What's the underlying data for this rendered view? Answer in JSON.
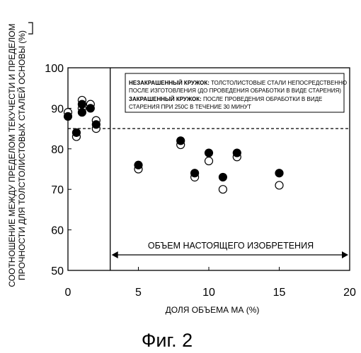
{
  "chart_data": {
    "type": "scatter",
    "xlabel": "ДОЛЯ ОБЪЕМА МА (%)",
    "ylabel_line1": "СООТНОШЕНИЕ МЕЖДУ ПРЕДЕЛОМ ТЕКУЧЕСТИ И ПРЕДЕЛОМ",
    "ylabel_line2": "ПРОЧНОСТИ ДЛЯ ТОЛСТОЛИСТОВЫХ СТАЛЕЙ ОСНОВЫ (%)",
    "xlim": [
      0,
      20
    ],
    "ylim": [
      50,
      100
    ],
    "x_ticks": [
      "0",
      "5",
      "10",
      "15",
      "20"
    ],
    "y_ticks": [
      "50",
      "60",
      "70",
      "80",
      "90",
      "100"
    ],
    "x_tick_values": [
      0,
      5,
      10,
      15,
      20
    ],
    "y_tick_values": [
      50,
      60,
      70,
      80,
      90,
      100
    ],
    "grid": false,
    "reference_line_y": 85,
    "invention_boundary_x": 3,
    "invention_range": [
      3,
      20
    ],
    "invention_label": "ОБЪЕМ НАСТОЯЩЕГО ИЗОБРЕТЕНИЯ",
    "legend": [
      {
        "key": "НЕЗАКРАШЕННЫЙ КРУЖОК:",
        "text": [
          " ТОЛСТОЛИСТОВЫЕ СТАЛИ НЕПОСРЕДСТВЕННО",
          "ПОСЛЕ ИЗГОТОВЛЕНИЯ (ДО ПРОВЕДЕНИЯ ОБРАБОТКИ В ВИДЕ СТАРЕНИЯ)"
        ]
      },
      {
        "key": "ЗАКРАШЕННЫЙ КРУЖОК:",
        "text": [
          " ПОСЛЕ ПРОВЕДЕНИЯ ОБРАБОТКИ В ВИДЕ",
          "СТАРЕНИЯ ПРИ 250С В ТЕЧЕНИЕ 30 МИНУТ"
        ]
      }
    ],
    "series": [
      {
        "marker": "open-circle",
        "points": [
          [
            0,
            89
          ],
          [
            0.6,
            83
          ],
          [
            1.0,
            92
          ],
          [
            1.0,
            90
          ],
          [
            1.6,
            91
          ],
          [
            2.0,
            85
          ],
          [
            2.0,
            87
          ],
          [
            5,
            75
          ],
          [
            8,
            81
          ],
          [
            9,
            73
          ],
          [
            10,
            77
          ],
          [
            11,
            70
          ],
          [
            12,
            78
          ],
          [
            15,
            71
          ]
        ]
      },
      {
        "marker": "filled-circle",
        "points": [
          [
            0,
            88
          ],
          [
            0.6,
            84
          ],
          [
            1.0,
            89
          ],
          [
            1.0,
            91
          ],
          [
            1.6,
            90
          ],
          [
            2.0,
            86
          ],
          [
            5,
            76
          ],
          [
            8,
            82
          ],
          [
            9,
            74
          ],
          [
            10,
            79
          ],
          [
            11,
            73
          ],
          [
            12,
            79
          ],
          [
            15,
            74
          ]
        ]
      }
    ]
  },
  "figure_caption": "Фиг. 2"
}
